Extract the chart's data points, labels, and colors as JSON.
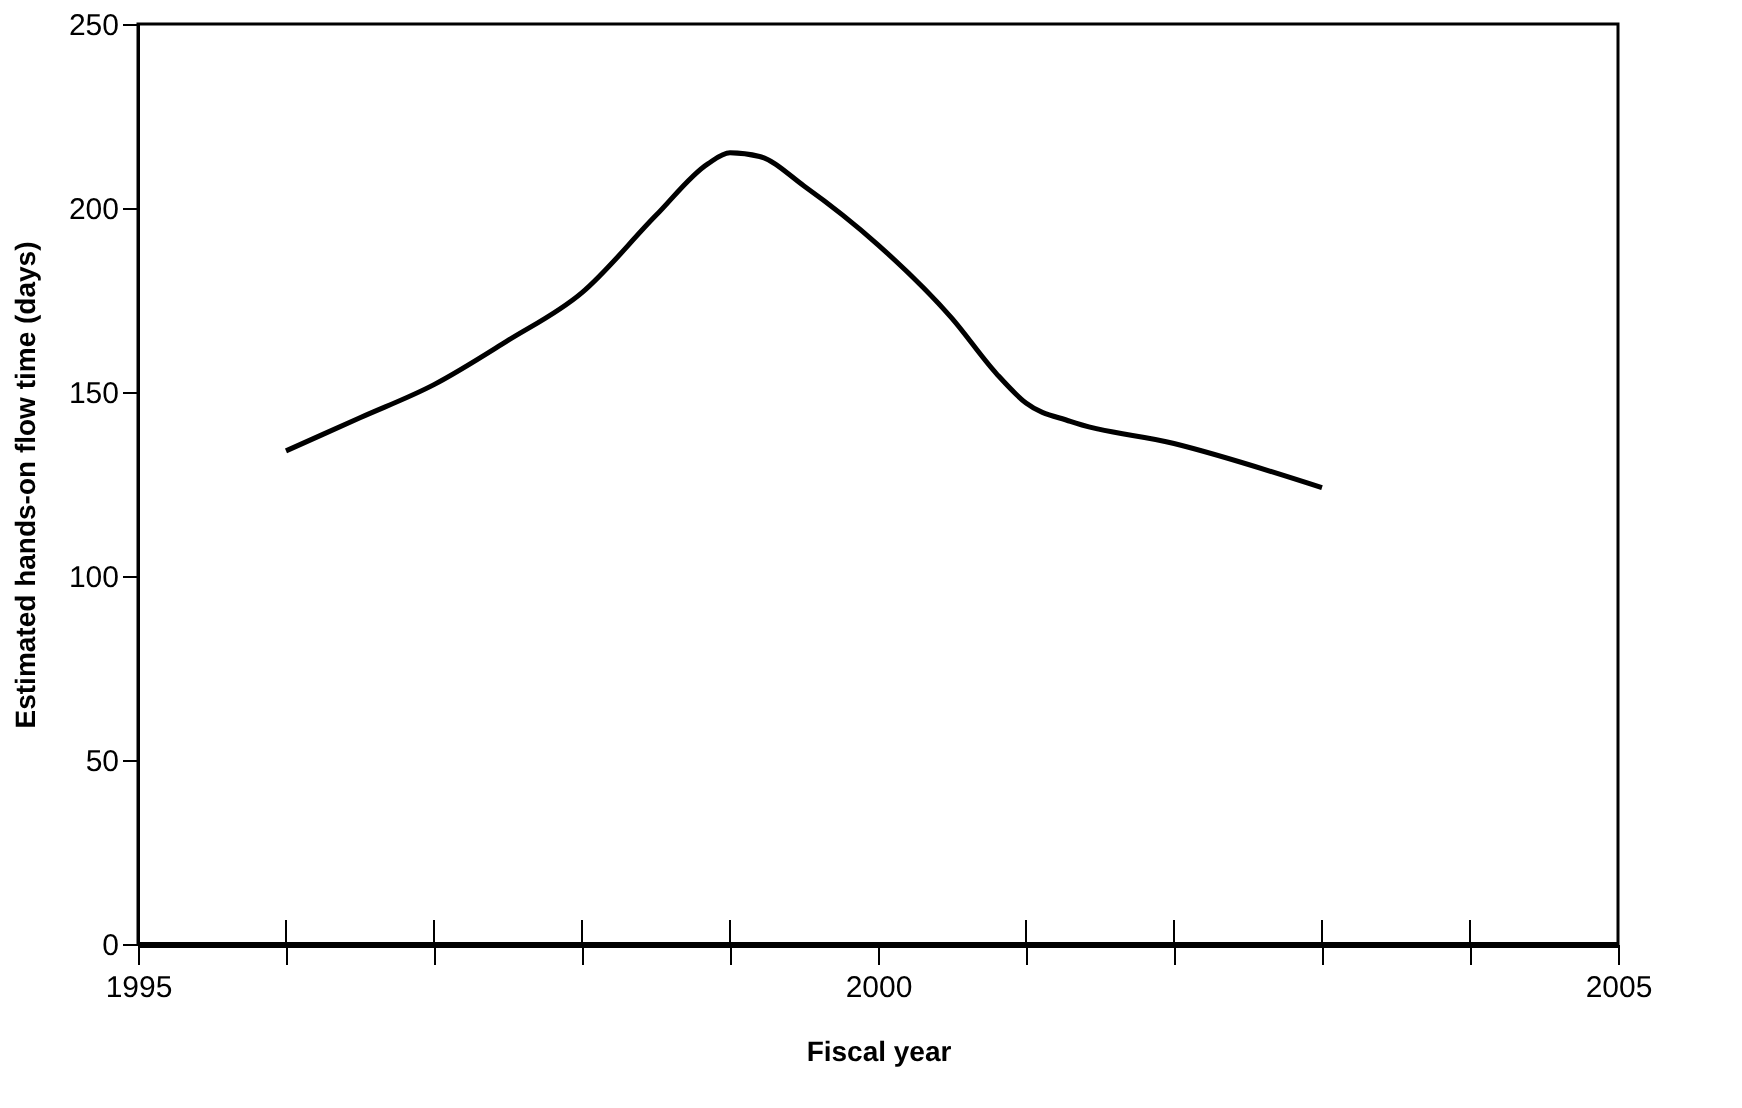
{
  "chart_data": {
    "type": "line",
    "xlabel": "Fiscal year",
    "ylabel": "Estimated hands-on flow time (days)",
    "x": [
      1996,
      1996.5,
      1997,
      1997.5,
      1998,
      1998.5,
      1998.85,
      1999,
      1999.2,
      1999.5,
      2000,
      2000.5,
      2000.8,
      2001,
      2001.3,
      2002,
      2003
    ],
    "series": [
      {
        "color": "#000000",
        "values": [
          134,
          143,
          152,
          164,
          177,
          198,
          212,
          215,
          214,
          206,
          190,
          170,
          155,
          147,
          142,
          136,
          124
        ]
      }
    ],
    "xlim": [
      1995,
      2005
    ],
    "ylim": [
      0,
      250
    ],
    "xticks": [
      1995,
      {
        "value": 1996,
        "label": null
      },
      {
        "value": 1997,
        "label": null
      },
      {
        "value": 1998,
        "label": null
      },
      {
        "value": 1999,
        "label": null
      },
      2000,
      {
        "value": 2001,
        "label": null
      },
      {
        "value": 2002,
        "label": null
      },
      {
        "value": 2003,
        "label": null
      },
      {
        "value": 2004,
        "label": null
      },
      2005
    ],
    "yticks": [
      0,
      50,
      100,
      150,
      200,
      250
    ],
    "grid": false,
    "marker": "none",
    "line_style": "solid"
  }
}
